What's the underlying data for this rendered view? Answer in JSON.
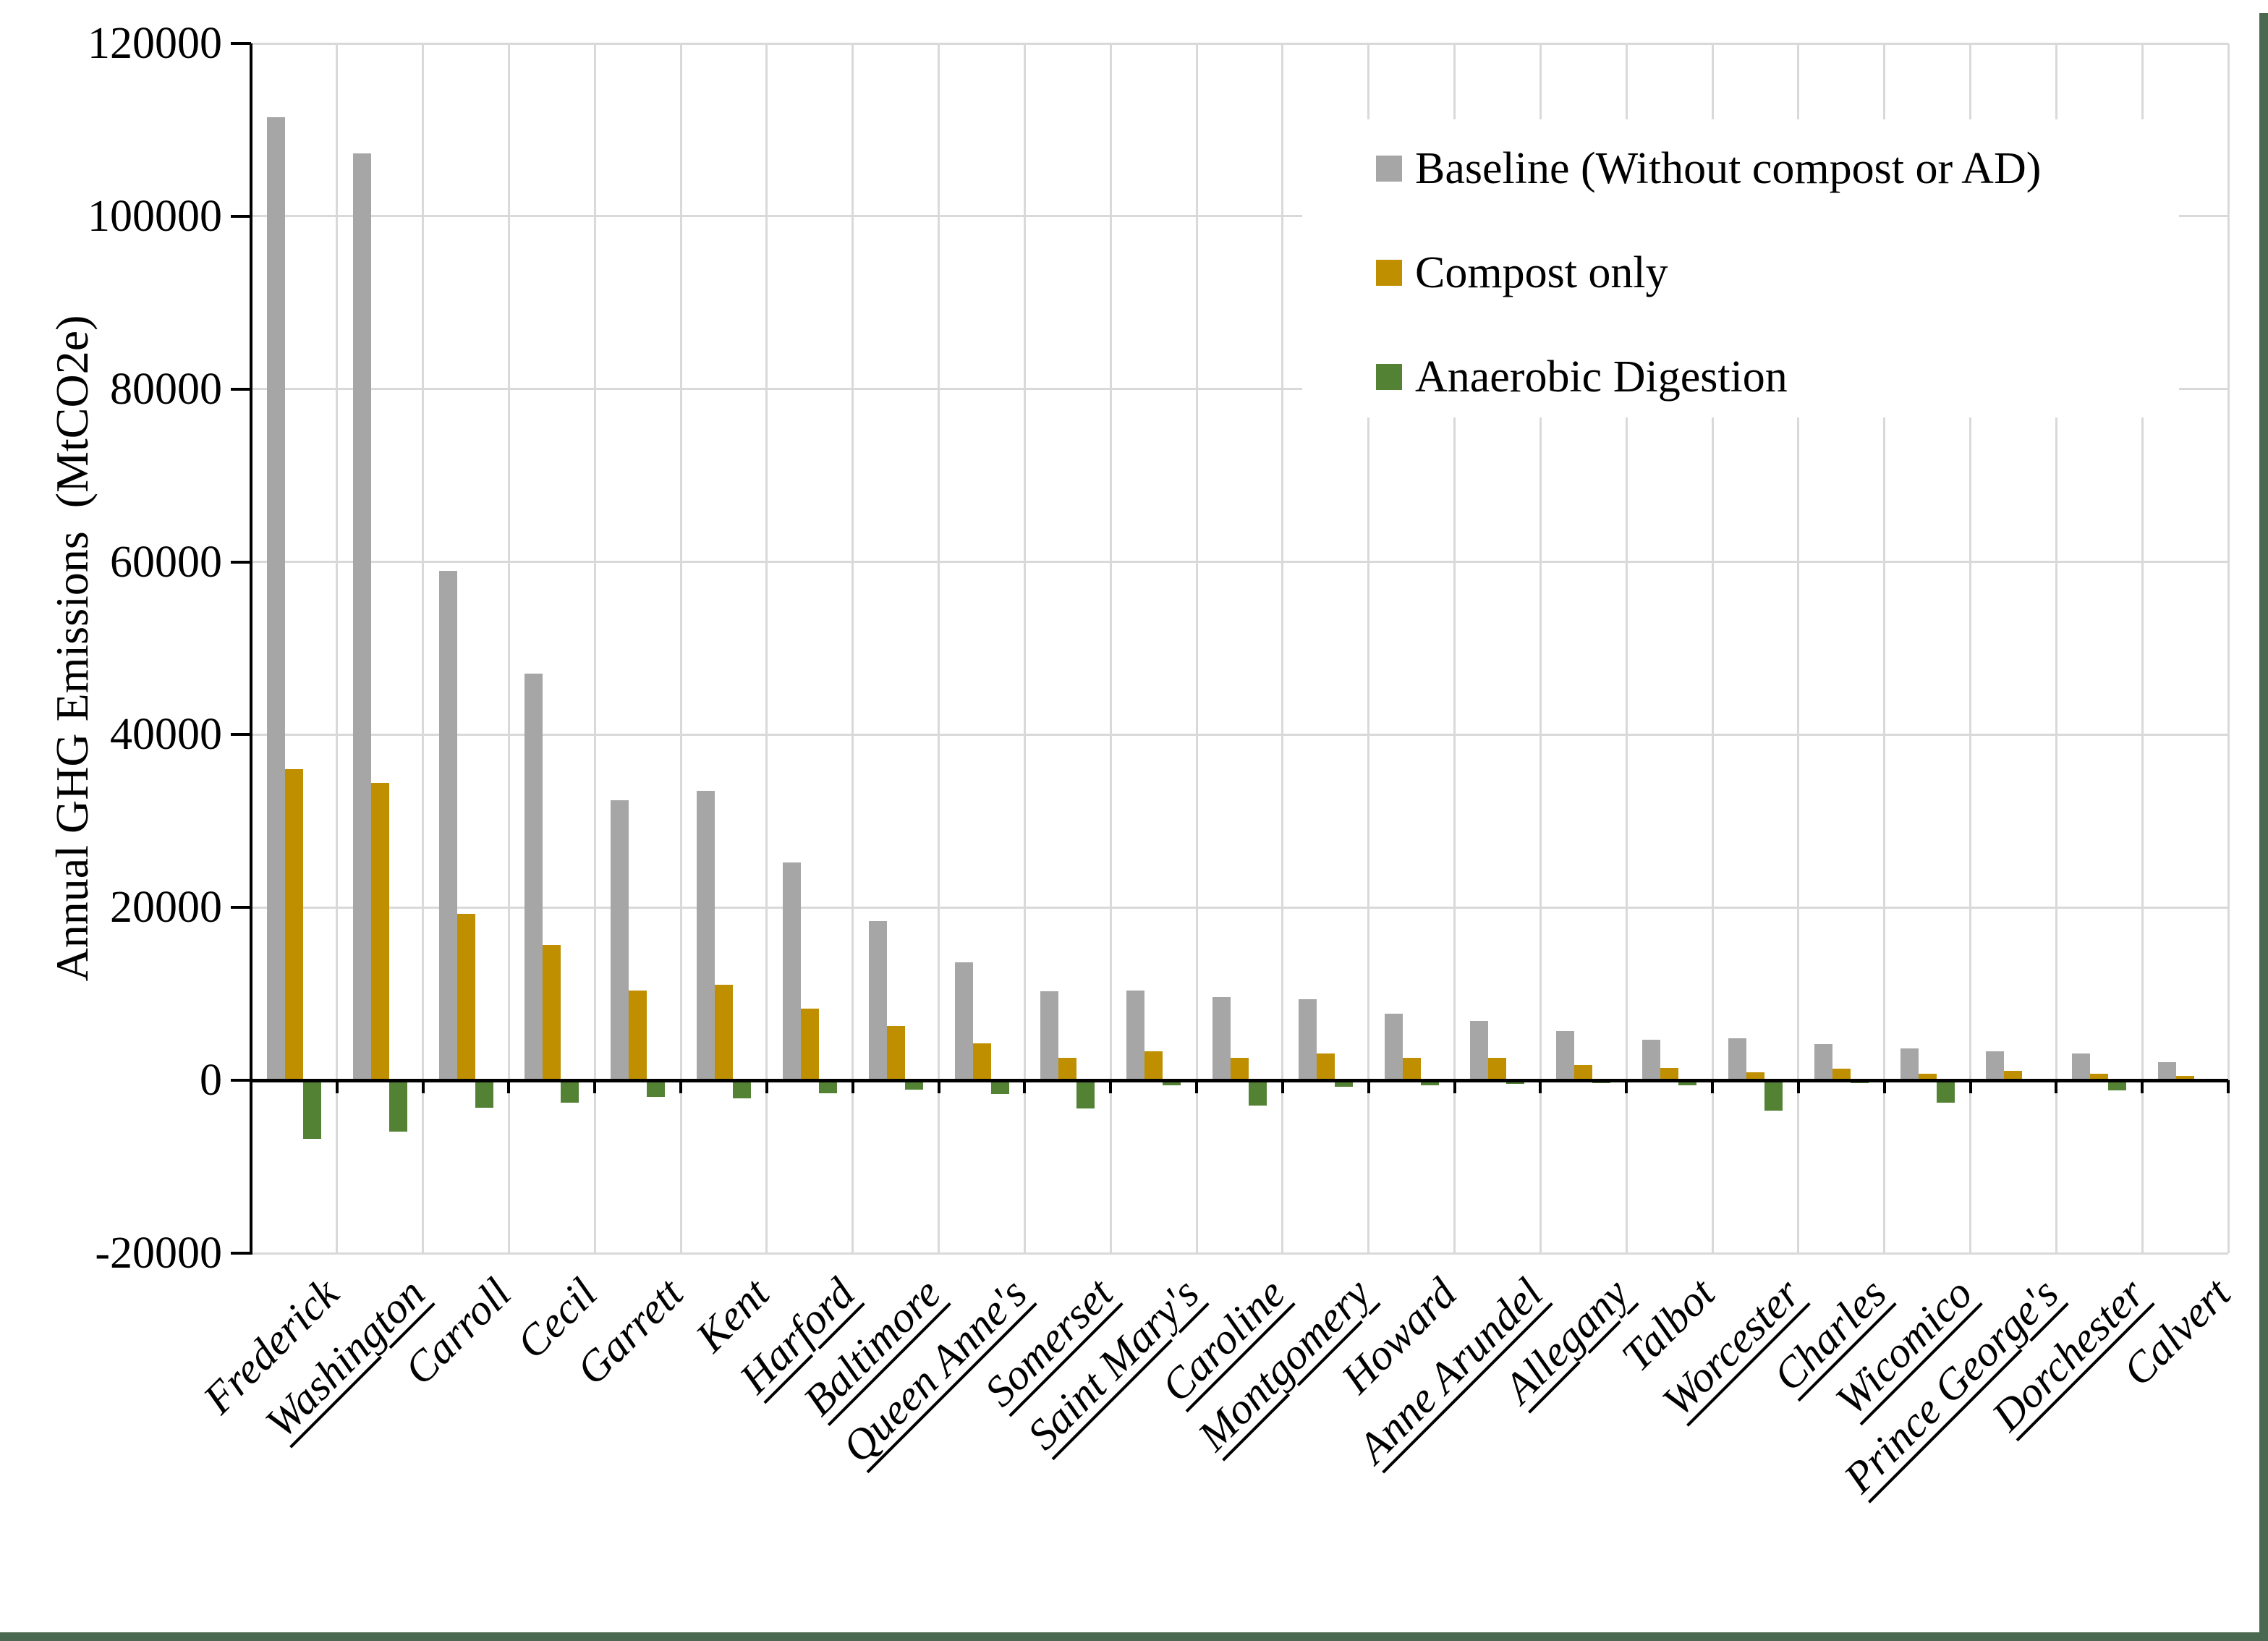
{
  "chart_data": {
    "type": "bar",
    "title": "",
    "xlabel": "",
    "ylabel": "Annual GHG Emissions  (MtCO2e)",
    "ylim": [
      -20000,
      120000
    ],
    "ytick_interval": 20000,
    "yticks": [
      120000,
      100000,
      80000,
      60000,
      40000,
      20000,
      0,
      -20000
    ],
    "grid": true,
    "legend_position": "inside-top-right",
    "categories": [
      "Frederick",
      "Washington",
      "Carroll",
      "Cecil",
      "Garrett",
      "Kent",
      "Harford",
      "Baltimore",
      "Queen Anne's",
      "Somerset",
      "Saint Mary's",
      "Caroline",
      "Montgomery",
      "Howard",
      "Anne Arundel",
      "Allegany",
      "Talbot",
      "Worcester",
      "Charles",
      "Wicomico",
      "Prince George's",
      "Dorchester",
      "Calvert"
    ],
    "underlined_categories": [
      "Washington",
      "Harford",
      "Baltimore",
      "Queen Anne's",
      "Somerset",
      "Saint Mary's",
      "Caroline",
      "Montgomery",
      "Anne Arundel",
      "Allegany",
      "Worcester",
      "Charles",
      "Wicomico",
      "Prince George's",
      "Dorchester"
    ],
    "series": [
      {
        "name": "Baseline (Without compost or AD)",
        "color": "#A6A6A6",
        "values": [
          111500,
          107300,
          59000,
          47100,
          32400,
          33500,
          25200,
          18400,
          13700,
          10300,
          10400,
          9600,
          9400,
          7700,
          6900,
          5700,
          4700,
          4900,
          4200,
          3700,
          3350,
          3100,
          2100
        ]
      },
      {
        "name": "Compost only",
        "color": "#BF8F00",
        "values": [
          36000,
          34400,
          19300,
          15700,
          10400,
          11100,
          8300,
          6300,
          4300,
          2600,
          3400,
          2600,
          3100,
          2600,
          2600,
          1750,
          1400,
          900,
          1350,
          750,
          1100,
          800,
          550
        ]
      },
      {
        "name": "Anaerobic Digestion",
        "color": "#548235",
        "values": [
          -6800,
          -5900,
          -3200,
          -2600,
          -1900,
          -2050,
          -1500,
          -1050,
          -1600,
          -3250,
          -600,
          -2950,
          -700,
          -550,
          -380,
          -320,
          -550,
          -3500,
          -320,
          -2550,
          -120,
          -1200,
          -160
        ]
      }
    ]
  },
  "colors": {
    "gridline": "#D9D9D9",
    "axis": "#000000",
    "frame_border": "#4B6950",
    "background": "#FFFFFF"
  }
}
